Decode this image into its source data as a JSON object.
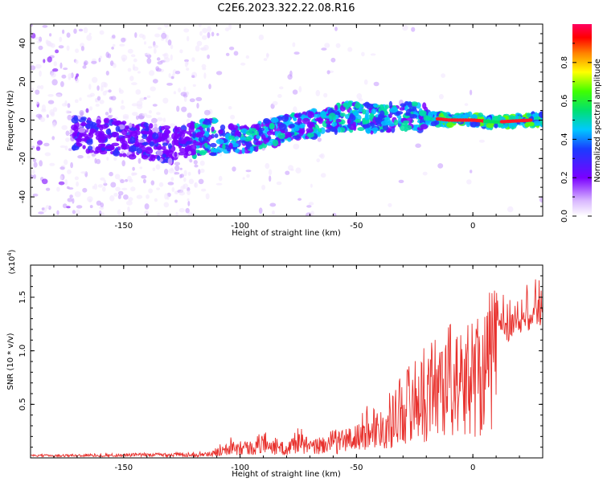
{
  "title": "C2E6.2023.322.22.08.R16",
  "chart_data": [
    {
      "type": "heatmap",
      "xlabel": "Height of straight line (km)",
      "ylabel": "Frequency (Hz)",
      "xlim": [
        -190,
        30
      ],
      "ylim": [
        -50,
        50
      ],
      "xticks": [
        -150,
        -100,
        -50,
        0
      ],
      "yticks": [
        -40,
        -20,
        0,
        20,
        40
      ],
      "colorbar": {
        "label": "Normalized spectral amplitude",
        "range": [
          0.0,
          1.0
        ],
        "ticks": [
          "0.0",
          "0.2",
          "0.4",
          "0.6",
          "0.8"
        ],
        "colormap": "rainbow (white-purple-blue-cyan-green-yellow-red-magenta)"
      },
      "ridge": {
        "description": "dominant frequency track",
        "x": [
          -170,
          -150,
          -130,
          -115,
          -100,
          -85,
          -70,
          -55,
          -40,
          -25,
          -10,
          0,
          10,
          25
        ],
        "y": [
          -7,
          -10,
          -13,
          -9,
          -10,
          -6,
          -2,
          2,
          1,
          2,
          0,
          0,
          -1,
          0
        ],
        "peak_x_range": [
          -15,
          25
        ]
      }
    },
    {
      "type": "line",
      "xlabel": "Height of straight line (km)",
      "ylabel": "SNR (10 * v/v)",
      "yscale_label": "(x10",
      "yscale_exp": "4",
      "yscale_close": ")",
      "xlim": [
        -190,
        30
      ],
      "ylim": [
        0,
        1.8
      ],
      "xticks": [
        -150,
        -100,
        -50,
        0
      ],
      "yticks": [
        "0.5",
        "1.0",
        "1.5"
      ],
      "color": "#e8302c",
      "series": [
        {
          "x": [
            -190,
            -160,
            -130,
            -112,
            -105,
            -95,
            -90,
            -80,
            -75,
            -70,
            -60,
            -50,
            -45,
            -40,
            -35,
            -30,
            -25,
            -20,
            -15,
            -10,
            -5,
            0,
            5,
            10,
            15,
            20,
            25,
            30
          ],
          "y": [
            0.02,
            0.03,
            0.04,
            0.05,
            0.2,
            0.15,
            0.25,
            0.12,
            0.3,
            0.15,
            0.25,
            0.3,
            0.5,
            0.45,
            0.6,
            0.8,
            0.9,
            1.0,
            1.15,
            1.25,
            1.1,
            1.3,
            1.4,
            1.6,
            1.45,
            1.5,
            1.6,
            1.65
          ]
        }
      ]
    }
  ]
}
